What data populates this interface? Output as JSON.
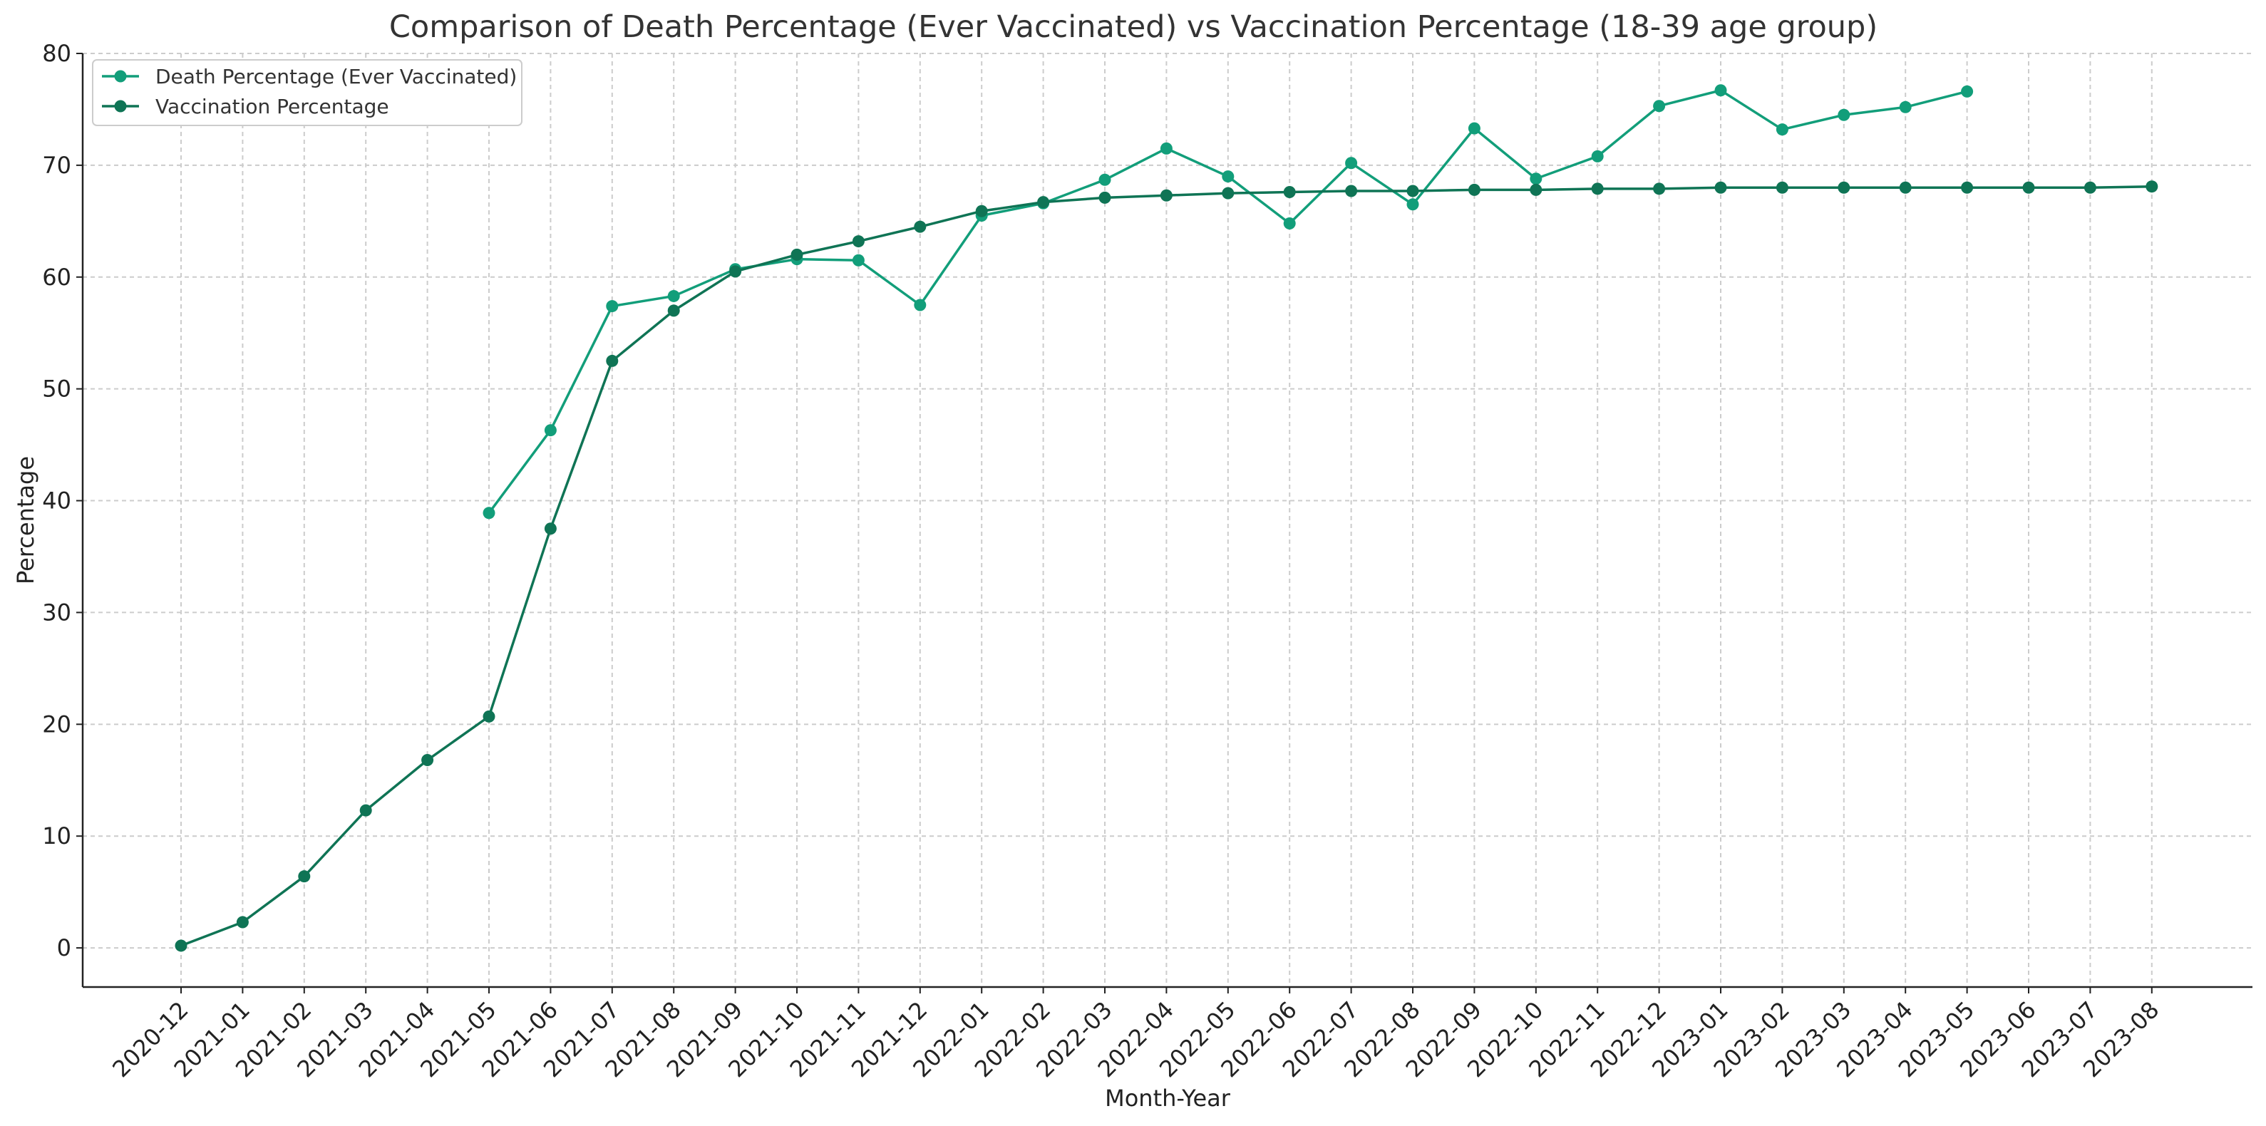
{
  "chart_data": {
    "type": "line",
    "title": "Comparison of Death Percentage (Ever Vaccinated) vs Vaccination Percentage (18-39 age group)",
    "xlabel": "Month-Year",
    "ylabel": "Percentage",
    "ylim": [
      -3.5,
      80
    ],
    "yticks": [
      0,
      10,
      20,
      30,
      40,
      50,
      60,
      70,
      80
    ],
    "grid": true,
    "legend_position": "top-left",
    "categories": [
      "2020-12",
      "2021-01",
      "2021-02",
      "2021-03",
      "2021-04",
      "2021-05",
      "2021-06",
      "2021-07",
      "2021-08",
      "2021-09",
      "2021-10",
      "2021-11",
      "2021-12",
      "2022-01",
      "2022-02",
      "2022-03",
      "2022-04",
      "2022-05",
      "2022-06",
      "2022-07",
      "2022-08",
      "2022-09",
      "2022-10",
      "2022-11",
      "2022-12",
      "2023-01",
      "2023-02",
      "2023-03",
      "2023-04",
      "2023-05",
      "2023-06",
      "2023-07",
      "2023-08"
    ],
    "series": [
      {
        "name": "Death Percentage (Ever Vaccinated)",
        "color": "#129e7a",
        "values": [
          null,
          null,
          null,
          null,
          null,
          38.9,
          46.3,
          57.4,
          58.3,
          60.7,
          61.6,
          61.5,
          57.5,
          65.5,
          66.6,
          68.7,
          71.5,
          69.0,
          64.8,
          70.2,
          66.5,
          73.3,
          68.8,
          70.8,
          75.3,
          76.7,
          73.2,
          74.5,
          75.2,
          76.6,
          null,
          null,
          null
        ]
      },
      {
        "name": "Vaccination Percentage",
        "color": "#0f7455",
        "values": [
          0.2,
          2.3,
          6.4,
          12.3,
          16.8,
          20.7,
          37.5,
          52.5,
          57.0,
          60.5,
          62.0,
          63.2,
          64.5,
          65.9,
          66.7,
          67.1,
          67.3,
          67.5,
          67.6,
          67.7,
          67.7,
          67.8,
          67.8,
          67.9,
          67.9,
          68.0,
          68.0,
          68.0,
          68.0,
          68.0,
          68.0,
          68.0,
          68.1
        ]
      }
    ]
  }
}
